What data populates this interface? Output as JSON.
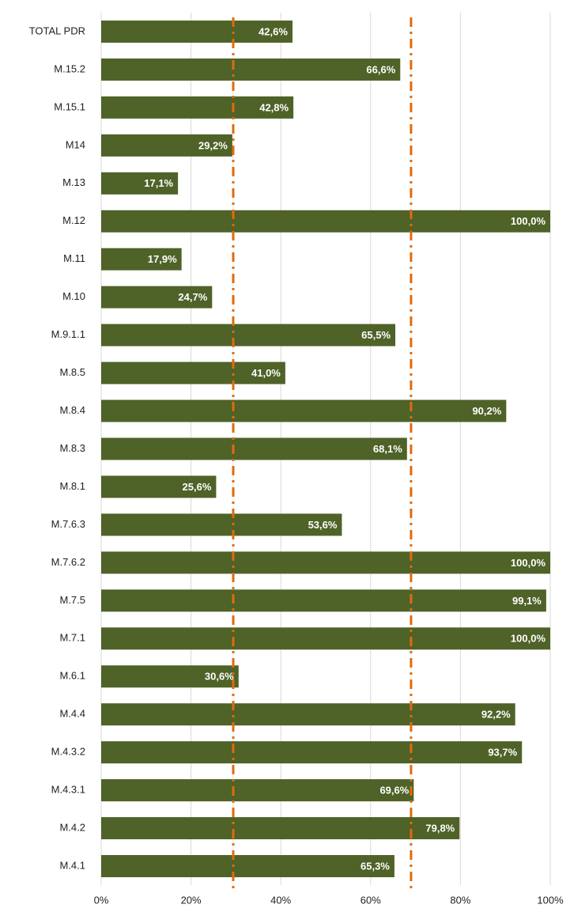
{
  "chart_data": {
    "type": "bar",
    "orientation": "horizontal",
    "categories": [
      "TOTAL PDR",
      "M.15.2",
      "M.15.1",
      "M14",
      "M.13",
      "M.12",
      "M.11",
      "M.10",
      "M.9.1.1",
      "M.8.5",
      "M.8.4",
      "M.8.3",
      "M.8.1",
      "M.7.6.3",
      "M.7.6.2",
      "M.7.5",
      "M.7.1",
      "M.6.1",
      "M.4.4",
      "M.4.3.2",
      "M.4.3.1",
      "M.4.2",
      "M.4.1"
    ],
    "values": [
      42.6,
      66.6,
      42.8,
      29.2,
      17.1,
      100.0,
      17.9,
      24.7,
      65.5,
      41.0,
      90.2,
      68.1,
      25.6,
      53.6,
      100.0,
      99.1,
      100.0,
      30.6,
      92.2,
      93.7,
      69.6,
      79.8,
      65.3
    ],
    "value_labels": [
      "42,6%",
      "66,6%",
      "42,8%",
      "29,2%",
      "17,1%",
      "100,0%",
      "17,9%",
      "24,7%",
      "65,5%",
      "41,0%",
      "90,2%",
      "68,1%",
      "25,6%",
      "53,6%",
      "100,0%",
      "99,1%",
      "100,0%",
      "30,6%",
      "92,2%",
      "93,7%",
      "69,6%",
      "79,8%",
      "65,3%"
    ],
    "color": "#4f6228",
    "xlim": [
      0,
      100
    ],
    "xticks": [
      {
        "value": 0,
        "label": "0%"
      },
      {
        "value": 20,
        "label": "20%"
      },
      {
        "value": 40,
        "label": "40%"
      },
      {
        "value": 60,
        "label": "60%"
      },
      {
        "value": 80,
        "label": "80%"
      },
      {
        "value": 100,
        "label": "100%"
      }
    ],
    "grid": true,
    "reference_lines": [
      29.4,
      69.0
    ],
    "reference_color": "#e26b0a"
  }
}
